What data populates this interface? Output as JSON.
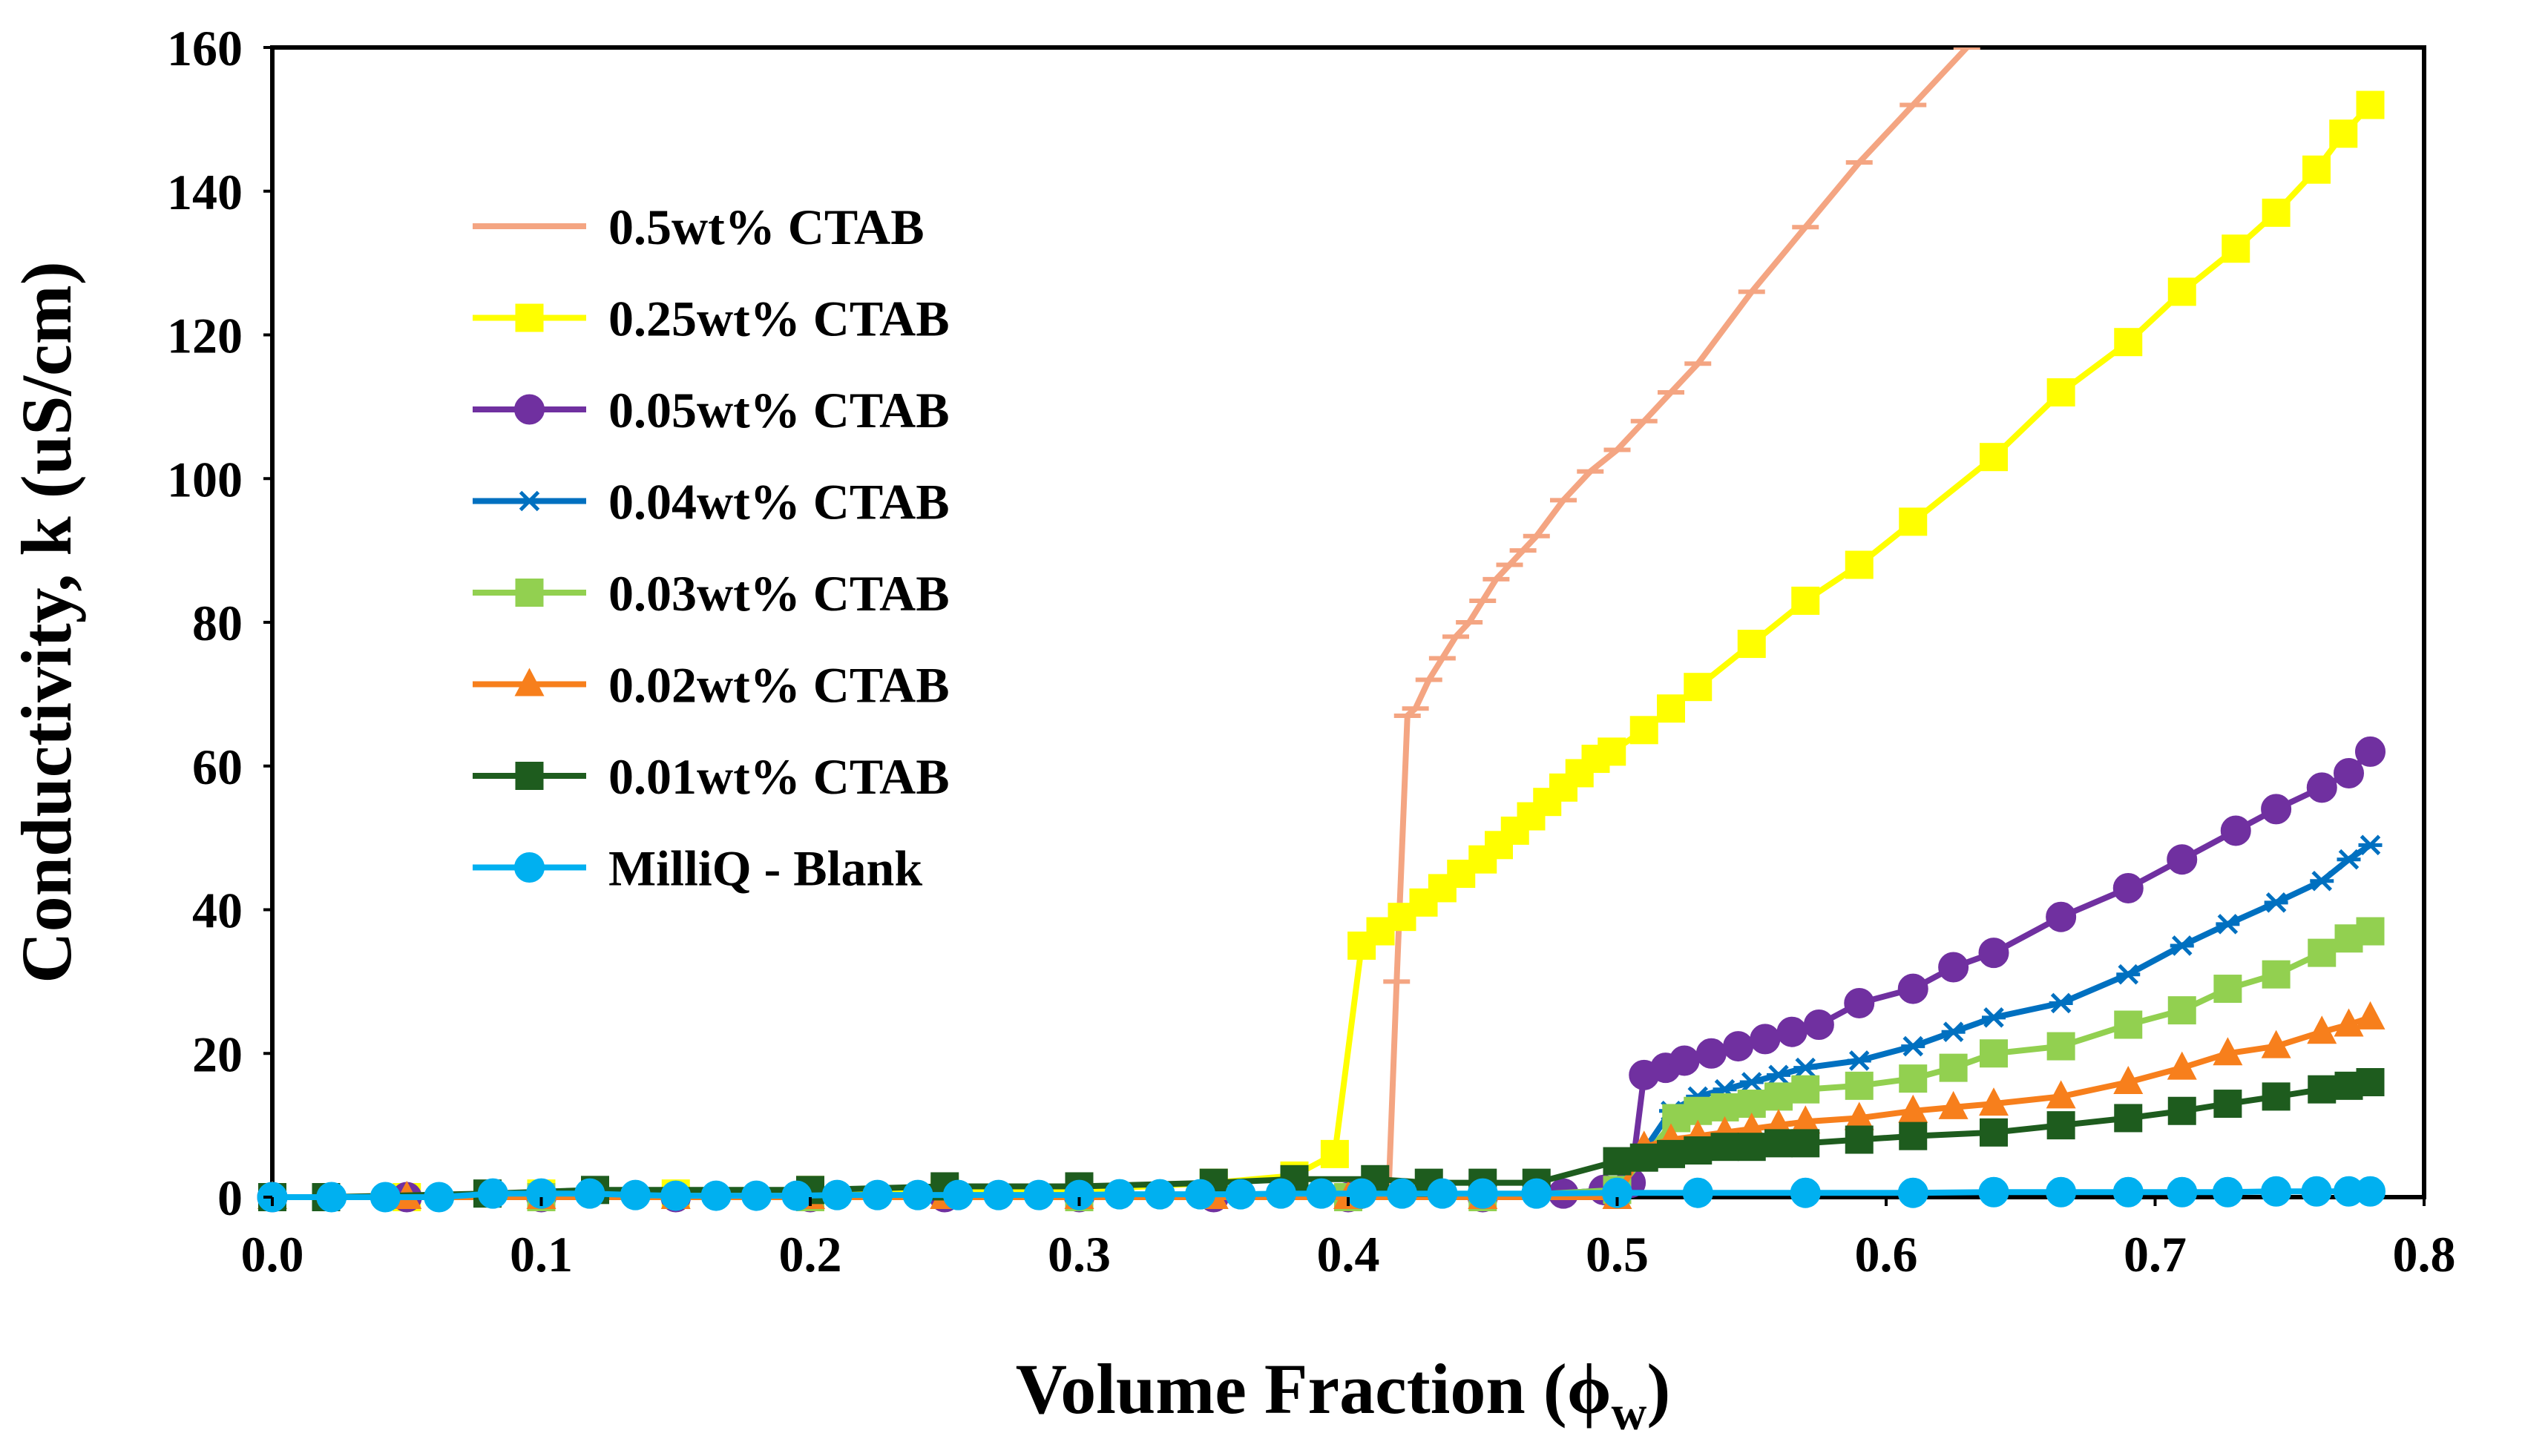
{
  "chart_data": {
    "type": "line",
    "title": "",
    "xlabel": "Volume Fraction (ϕ",
    "xlabel_sub": "w",
    "xlabel_close": ")",
    "ylabel": "Conductivity, k (uS/cm)",
    "xlim": [
      0,
      0.8
    ],
    "ylim": [
      0,
      160
    ],
    "xticks": [
      0,
      0.1,
      0.2,
      0.3,
      0.4,
      0.5,
      0.6,
      0.7,
      0.8
    ],
    "xtick_labels": [
      "0.0",
      "0.1",
      "0.2",
      "0.3",
      "0.4",
      "0.5",
      "0.6",
      "0.7",
      "0.8"
    ],
    "yticks": [
      0,
      20,
      40,
      60,
      80,
      100,
      120,
      140,
      160
    ],
    "ytick_labels": [
      "0",
      "20",
      "40",
      "60",
      "80",
      "100",
      "120",
      "140",
      "160"
    ],
    "grid": false,
    "legend_position": "top-left",
    "series": [
      {
        "name": "0.5wt% CTAB",
        "color": "#F4A582",
        "marker": "dash",
        "x": [
          0.0,
          0.02,
          0.05,
          0.1,
          0.15,
          0.2,
          0.25,
          0.3,
          0.35,
          0.4,
          0.415,
          0.418,
          0.422,
          0.425,
          0.43,
          0.435,
          0.44,
          0.445,
          0.45,
          0.455,
          0.46,
          0.465,
          0.47,
          0.48,
          0.49,
          0.5,
          0.51,
          0.52,
          0.53,
          0.55,
          0.57,
          0.59,
          0.61,
          0.63
        ],
        "y": [
          0,
          0,
          0,
          0,
          0,
          0,
          0,
          0,
          0,
          0.5,
          0.5,
          30,
          67,
          68,
          72,
          75,
          78,
          80,
          83,
          86,
          88,
          90,
          92,
          97,
          101,
          104,
          108,
          112,
          116,
          126,
          135,
          144,
          152,
          160
        ]
      },
      {
        "name": "0.25wt% CTAB",
        "color": "#FFFF00",
        "marker": "square",
        "x": [
          0.0,
          0.02,
          0.05,
          0.1,
          0.15,
          0.2,
          0.25,
          0.3,
          0.35,
          0.38,
          0.395,
          0.405,
          0.412,
          0.42,
          0.428,
          0.435,
          0.442,
          0.45,
          0.456,
          0.462,
          0.468,
          0.474,
          0.48,
          0.486,
          0.492,
          0.498,
          0.51,
          0.52,
          0.53,
          0.55,
          0.57,
          0.59,
          0.61,
          0.64,
          0.665,
          0.69,
          0.71,
          0.73,
          0.745,
          0.76,
          0.77,
          0.78
        ],
        "y": [
          0,
          0,
          0,
          0.5,
          0.5,
          1,
          1,
          1,
          2,
          3,
          6,
          35,
          37,
          39,
          41,
          43,
          45,
          47,
          49,
          51,
          53,
          55,
          57,
          59,
          61,
          62,
          65,
          68,
          71,
          77,
          83,
          88,
          94,
          103,
          112,
          119,
          126,
          132,
          137,
          143,
          148,
          152
        ]
      },
      {
        "name": "0.05wt% CTAB",
        "color": "#7030A0",
        "marker": "circle",
        "x": [
          0.0,
          0.05,
          0.1,
          0.15,
          0.2,
          0.25,
          0.3,
          0.35,
          0.4,
          0.45,
          0.48,
          0.495,
          0.505,
          0.51,
          0.518,
          0.525,
          0.535,
          0.545,
          0.555,
          0.565,
          0.575,
          0.59,
          0.61,
          0.625,
          0.64,
          0.665,
          0.69,
          0.71,
          0.73,
          0.745,
          0.762,
          0.772,
          0.78
        ],
        "y": [
          0,
          0,
          0,
          0,
          0,
          0,
          0,
          0,
          0,
          0,
          0.5,
          1,
          2,
          17,
          18,
          19,
          20,
          21,
          22,
          23,
          24,
          27,
          29,
          32,
          34,
          39,
          43,
          47,
          51,
          54,
          57,
          59,
          62
        ]
      },
      {
        "name": "0.04wt% CTAB",
        "color": "#0070C0",
        "marker": "asterisk",
        "x": [
          0.0,
          0.1,
          0.2,
          0.3,
          0.4,
          0.45,
          0.5,
          0.52,
          0.53,
          0.54,
          0.55,
          0.56,
          0.57,
          0.59,
          0.61,
          0.625,
          0.64,
          0.665,
          0.69,
          0.71,
          0.727,
          0.745,
          0.762,
          0.772,
          0.78
        ],
        "y": [
          0,
          0,
          0,
          0,
          0,
          0,
          1,
          12,
          14,
          15,
          16,
          17,
          18,
          19,
          21,
          23,
          25,
          27,
          31,
          35,
          38,
          41,
          44,
          47,
          49
        ]
      },
      {
        "name": "0.03wt% CTAB",
        "color": "#92D050",
        "marker": "square",
        "x": [
          0.0,
          0.1,
          0.2,
          0.3,
          0.4,
          0.45,
          0.5,
          0.522,
          0.53,
          0.54,
          0.55,
          0.56,
          0.57,
          0.59,
          0.61,
          0.625,
          0.64,
          0.665,
          0.69,
          0.71,
          0.727,
          0.745,
          0.762,
          0.772,
          0.78
        ],
        "y": [
          0,
          0,
          0,
          0,
          0,
          0,
          1,
          11,
          12,
          12.5,
          13,
          14,
          15,
          15.5,
          16.5,
          18,
          20,
          21,
          24,
          26,
          29,
          31,
          34,
          36,
          37
        ]
      },
      {
        "name": "0.02wt% CTAB",
        "color": "#F77F1C",
        "marker": "triangle",
        "x": [
          0.0,
          0.05,
          0.1,
          0.15,
          0.2,
          0.25,
          0.3,
          0.35,
          0.4,
          0.45,
          0.5,
          0.51,
          0.52,
          0.53,
          0.54,
          0.55,
          0.56,
          0.57,
          0.59,
          0.61,
          0.625,
          0.64,
          0.665,
          0.69,
          0.71,
          0.727,
          0.745,
          0.762,
          0.772,
          0.78
        ],
        "y": [
          0,
          0,
          0,
          0,
          0,
          0,
          0,
          0,
          0,
          0,
          0,
          7,
          8,
          8.5,
          9,
          9.5,
          10,
          10.5,
          11,
          12,
          12.5,
          13,
          14,
          16,
          18,
          20,
          21,
          23,
          24,
          25
        ]
      },
      {
        "name": "0.01wt% CTAB",
        "color": "#1E5C1E",
        "marker": "square",
        "x": [
          0.0,
          0.02,
          0.08,
          0.12,
          0.2,
          0.25,
          0.3,
          0.35,
          0.38,
          0.41,
          0.43,
          0.45,
          0.47,
          0.5,
          0.51,
          0.52,
          0.53,
          0.54,
          0.55,
          0.56,
          0.57,
          0.59,
          0.61,
          0.64,
          0.665,
          0.69,
          0.71,
          0.727,
          0.745,
          0.762,
          0.772,
          0.78
        ],
        "y": [
          0,
          0,
          0.5,
          1,
          1,
          1.5,
          1.5,
          2,
          2.5,
          2.5,
          2,
          2,
          2,
          5,
          5.5,
          6,
          6.5,
          7,
          7,
          7.5,
          7.5,
          8,
          8.5,
          9,
          10,
          11,
          12,
          13,
          14,
          15,
          15.5,
          16
        ]
      },
      {
        "name": "MilliQ - Blank",
        "color": "#00B0F0",
        "marker": "circle",
        "x": [
          0.0,
          0.022,
          0.042,
          0.062,
          0.082,
          0.1,
          0.118,
          0.135,
          0.15,
          0.165,
          0.18,
          0.195,
          0.21,
          0.225,
          0.24,
          0.255,
          0.27,
          0.285,
          0.3,
          0.315,
          0.33,
          0.345,
          0.36,
          0.375,
          0.39,
          0.405,
          0.42,
          0.435,
          0.45,
          0.47,
          0.5,
          0.53,
          0.57,
          0.61,
          0.64,
          0.665,
          0.69,
          0.71,
          0.727,
          0.745,
          0.76,
          0.772,
          0.78
        ],
        "y": [
          0,
          0,
          0,
          0,
          0.5,
          0.5,
          0.5,
          0.3,
          0.2,
          0.2,
          0.2,
          0.2,
          0.3,
          0.3,
          0.3,
          0.3,
          0.3,
          0.3,
          0.3,
          0.4,
          0.4,
          0.4,
          0.4,
          0.5,
          0.5,
          0.5,
          0.5,
          0.5,
          0.5,
          0.5,
          0.6,
          0.6,
          0.6,
          0.6,
          0.7,
          0.7,
          0.7,
          0.7,
          0.7,
          0.8,
          0.8,
          0.8,
          0.8
        ]
      }
    ]
  }
}
